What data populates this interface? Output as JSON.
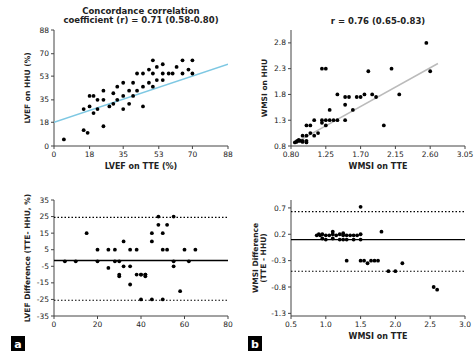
{
  "chart_data": [
    {
      "type": "scatter",
      "title": "Concordance correlation\ncoefficient (r) = 0.71 (0.58-0.80)",
      "xlabel": "LVEF on TTE (%)",
      "ylabel": "LVEF on HHU (%)",
      "xlim": [
        0,
        88
      ],
      "ylim": [
        0,
        88
      ],
      "xticks": [
        0,
        18,
        35,
        53,
        70,
        88
      ],
      "yticks": [
        0,
        18,
        35,
        53,
        70,
        88
      ],
      "series": [
        {
          "type": "scatter",
          "color": "black",
          "x": [
            5,
            15,
            15,
            17,
            18,
            18,
            20,
            20,
            22,
            22,
            25,
            25,
            25,
            28,
            30,
            30,
            32,
            32,
            35,
            35,
            35,
            38,
            38,
            40,
            40,
            42,
            42,
            45,
            45,
            45,
            48,
            48,
            50,
            50,
            50,
            52,
            52,
            55,
            55,
            55,
            58,
            60,
            62,
            65,
            65,
            68,
            70,
            70
          ],
          "values": [
            5,
            12,
            28,
            10,
            30,
            38,
            25,
            38,
            28,
            35,
            15,
            35,
            42,
            30,
            32,
            40,
            35,
            45,
            28,
            38,
            48,
            32,
            42,
            38,
            48,
            42,
            55,
            30,
            45,
            55,
            48,
            58,
            45,
            55,
            65,
            50,
            60,
            50,
            55,
            62,
            55,
            55,
            60,
            55,
            65,
            58,
            55,
            65
          ]
        },
        {
          "type": "line",
          "color": "#7ec8e3",
          "x": [
            0,
            88
          ],
          "values": [
            18,
            62
          ]
        }
      ]
    },
    {
      "type": "scatter",
      "title": "r = 0.76 (0.65-0.83)",
      "xlabel": "WMSI on TTE",
      "ylabel": "WMSI on HHU",
      "xlim": [
        0.8,
        3.05
      ],
      "ylim": [
        0.8,
        3.05
      ],
      "xticks": [
        {
          "value": 0.8,
          "label": "0.80"
        },
        1.25,
        {
          "value": 1.7,
          "label": "1.70"
        },
        2.15,
        {
          "value": 2.6,
          "label": "2.60"
        },
        3.05
      ],
      "yticks": [
        0.8,
        1.3,
        1.8,
        2.3,
        2.8
      ],
      "series": [
        {
          "type": "scatter",
          "color": "black",
          "x": [
            0.85,
            0.87,
            0.88,
            0.9,
            0.9,
            0.92,
            0.95,
            0.95,
            0.95,
            1.0,
            1.0,
            1.0,
            1.0,
            1.05,
            1.05,
            1.1,
            1.1,
            1.15,
            1.2,
            1.2,
            1.2,
            1.25,
            1.25,
            1.25,
            1.3,
            1.3,
            1.35,
            1.4,
            1.4,
            1.5,
            1.5,
            1.5,
            1.55,
            1.6,
            1.65,
            1.7,
            1.75,
            1.8,
            1.85,
            1.9,
            2.0,
            2.1,
            2.2,
            2.55,
            2.6
          ],
          "values": [
            0.87,
            0.88,
            0.9,
            0.9,
            0.92,
            0.9,
            0.88,
            0.9,
            1.0,
            0.87,
            0.9,
            1.0,
            1.2,
            1.05,
            1.2,
            1.0,
            1.3,
            1.05,
            1.25,
            1.3,
            2.3,
            1.2,
            1.3,
            2.3,
            1.3,
            1.5,
            1.3,
            1.3,
            1.8,
            1.3,
            1.6,
            1.75,
            1.75,
            1.5,
            1.75,
            1.75,
            1.8,
            2.25,
            1.8,
            1.75,
            1.2,
            2.3,
            1.8,
            2.8,
            2.25
          ]
        },
        {
          "type": "line",
          "color": "#bbbbbb",
          "x": [
            0.9,
            2.7
          ],
          "values": [
            0.9,
            2.4
          ]
        }
      ]
    },
    {
      "type": "scatter",
      "ylabel": "LVEF Difference (TTE- HHU, %)",
      "annotation": "a",
      "xlim": [
        0,
        80
      ],
      "ylim": [
        -35,
        35
      ],
      "xticks": [
        0,
        20,
        40,
        60,
        80
      ],
      "yticks": [
        -35,
        -25,
        -15,
        -5,
        5,
        15,
        25,
        35
      ],
      "reference_lines": [
        {
          "value": -1.5,
          "line_style": "solid",
          "color": "black"
        },
        {
          "value": 24.5,
          "line_style": "dotted",
          "color": "black"
        },
        {
          "value": -25.5,
          "line_style": "dotted",
          "color": "black"
        }
      ],
      "series": [
        {
          "type": "scatter",
          "color": "black",
          "x": [
            5,
            10,
            15,
            20,
            20,
            25,
            25,
            28,
            28,
            30,
            30,
            30,
            32,
            32,
            35,
            35,
            35,
            38,
            38,
            40,
            40,
            40,
            42,
            42,
            42,
            45,
            45,
            45,
            48,
            48,
            50,
            50,
            50,
            52,
            52,
            55,
            55,
            55,
            58,
            60,
            62,
            65
          ],
          "values": [
            -2,
            -2,
            15,
            5,
            -2,
            5,
            -6,
            5,
            -2,
            -2,
            -10,
            -11,
            10,
            -5,
            -5,
            -16,
            5,
            5,
            -10,
            -10,
            -25,
            -10,
            -10,
            -10,
            -11,
            15,
            -25,
            10,
            20,
            25,
            15,
            -25,
            5,
            5,
            20,
            25,
            -5,
            -2,
            -20,
            5,
            -2,
            5
          ]
        }
      ]
    },
    {
      "type": "scatter",
      "xlabel": "WMSI on TTE",
      "ylabel": "WMSI Difference\n(TTE - HHU)",
      "annotation": "b",
      "xlim": [
        0.5,
        3.0
      ],
      "ylim": [
        -1.35,
        0.85
      ],
      "xticks": [
        0.5,
        {
          "value": 1.0,
          "label": "1.0"
        },
        1.5,
        {
          "value": 2.0,
          "label": "2.0"
        },
        2.5,
        {
          "value": 3.0,
          "label": "3.0"
        }
      ],
      "yticks": [
        -1.3,
        -0.8,
        -0.3,
        0.2,
        0.7
      ],
      "reference_lines": [
        {
          "value": 0.1,
          "line_style": "solid",
          "color": "black"
        },
        {
          "value": 0.63,
          "line_style": "dotted",
          "color": "black"
        },
        {
          "value": -0.5,
          "line_style": "dotted",
          "color": "black"
        }
      ],
      "series": [
        {
          "type": "scatter",
          "color": "black",
          "x": [
            0.87,
            0.9,
            0.92,
            0.95,
            0.95,
            1.0,
            1.0,
            1.05,
            1.1,
            1.1,
            1.1,
            1.15,
            1.2,
            1.2,
            1.25,
            1.25,
            1.25,
            1.3,
            1.3,
            1.3,
            1.35,
            1.4,
            1.4,
            1.45,
            1.5,
            1.5,
            1.5,
            1.5,
            1.55,
            1.6,
            1.65,
            1.7,
            1.75,
            1.8,
            1.9,
            2.0,
            2.1,
            2.55,
            2.6
          ],
          "values": [
            0.18,
            0.2,
            0.18,
            0.2,
            0.12,
            0.18,
            0.1,
            0.18,
            0.2,
            0.25,
            0.12,
            0.18,
            0.2,
            0.1,
            0.22,
            0.18,
            0.1,
            0.18,
            0.1,
            -0.3,
            0.18,
            0.18,
            0.1,
            0.18,
            0.72,
            0.2,
            0.1,
            -0.3,
            -0.3,
            -0.35,
            -0.3,
            -0.3,
            -0.3,
            0.25,
            -0.5,
            -0.5,
            -0.35,
            -0.8,
            -0.85
          ]
        }
      ]
    }
  ]
}
